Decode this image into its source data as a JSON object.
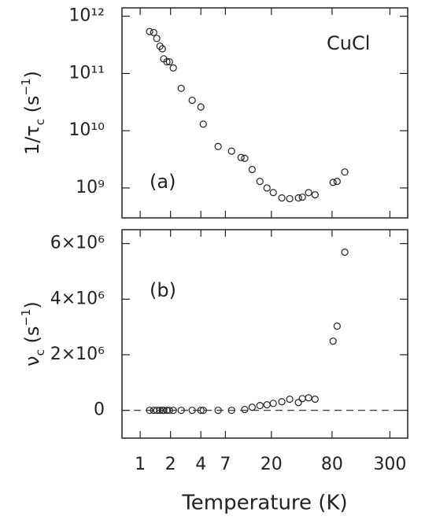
{
  "chart_data": [
    {
      "type": "scatter",
      "log_x": true,
      "log_y": true,
      "color": "#222",
      "ylabel": [
        "1/τ",
        "c",
        " (s",
        "−1",
        ")"
      ],
      "annotations": [
        "CuCl",
        "(a)"
      ],
      "x": [
        1.24,
        1.36,
        1.46,
        1.57,
        1.66,
        1.71,
        1.84,
        1.95,
        2.13,
        2.55,
        3.28,
        4.0,
        4.22,
        5.93,
        8.06,
        10,
        10.9,
        12.9,
        15.4,
        18.1,
        20.9,
        25.4,
        30.4,
        37.1,
        40.6,
        46.8,
        54.3,
        81.9,
        89.8,
        107
      ],
      "values": [
        540000000000.0,
        520000000000.0,
        410000000000.0,
        300000000000.0,
        270000000000.0,
        180000000000.0,
        160000000000.0,
        160000000000.0,
        125000000000.0,
        55000000000.0,
        34000000000.0,
        26000000000.0,
        13000000000.0,
        5300000000.0,
        4400000000.0,
        3400000000.0,
        3300000000.0,
        2100000000.0,
        1300000000.0,
        1000000000.0,
        830000000.0,
        670000000.0,
        650000000.0,
        670000000.0,
        690000000.0,
        830000000.0,
        760000000.0,
        1250000000.0,
        1300000000.0,
        1900000000.0
      ],
      "xlim": [
        0.66,
        450
      ],
      "xticks": [
        1,
        2,
        4,
        7,
        20,
        80,
        300
      ],
      "ylim": [
        300000000.0,
        1400000000000.0
      ],
      "yticks": [
        {
          "value": 1000000000000.0,
          "label": "10¹²"
        },
        {
          "value": 100000000000.0,
          "label": "10¹¹"
        },
        {
          "value": 10000000000.0,
          "label": "10¹⁰"
        },
        {
          "value": 1000000000.0,
          "label": "10⁹"
        }
      ]
    },
    {
      "type": "scatter",
      "log_x": true,
      "log_y": false,
      "color": "#222",
      "zero_line": true,
      "ylabel": [
        "ν",
        "c",
        " (s",
        "−1",
        ")"
      ],
      "annotations": [
        "(b)"
      ],
      "xlabel": "Temperature (K)",
      "x": [
        1.24,
        1.36,
        1.46,
        1.57,
        1.66,
        1.71,
        1.84,
        1.95,
        2.13,
        2.55,
        3.28,
        4.0,
        4.22,
        5.93,
        8.06,
        10.9,
        12.9,
        15.4,
        18.1,
        20.9,
        25.4,
        30.4,
        37.1,
        40.6,
        46.8,
        54.3,
        81.9,
        89.8,
        107
      ],
      "values": [
        0,
        0,
        0,
        0,
        0,
        0,
        0,
        0,
        0,
        0,
        0,
        0,
        0,
        0,
        0,
        30000,
        110000,
        170000,
        200000,
        250000,
        310000,
        400000,
        280000,
        420000,
        450000,
        400000,
        2490000,
        3030000,
        5690000
      ],
      "xlim": [
        0.66,
        450
      ],
      "xticks": [
        1,
        2,
        4,
        7,
        20,
        80,
        300
      ],
      "ylim": [
        -1000000,
        6500000
      ],
      "yticks": [
        {
          "value": 6000000,
          "label": "6×10⁶"
        },
        {
          "value": 4000000,
          "label": "4×10⁶"
        },
        {
          "value": 2000000,
          "label": "2×10⁶"
        },
        0
      ]
    }
  ]
}
